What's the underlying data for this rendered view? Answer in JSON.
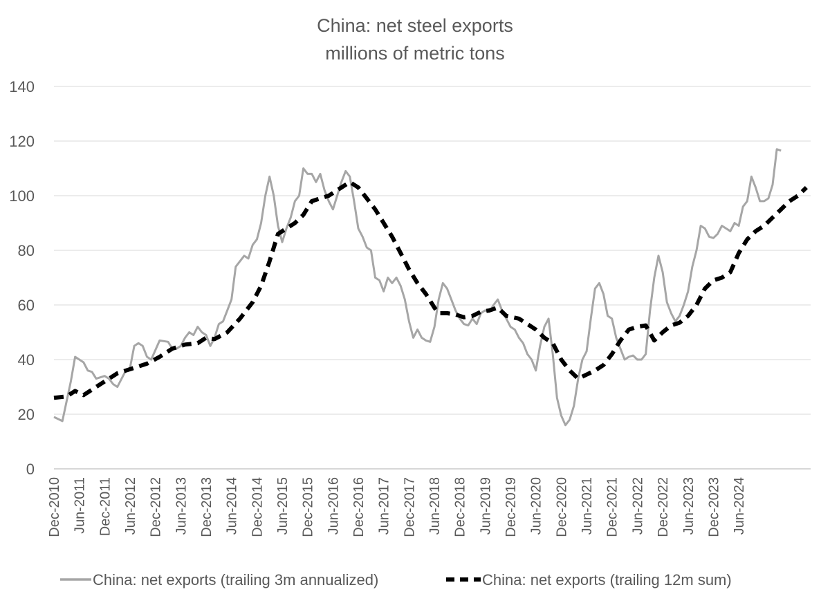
{
  "chart_data": {
    "type": "line",
    "title": "China: net steel exports",
    "subtitle": "millions of metric tons",
    "ylim": [
      0,
      140
    ],
    "yticks": [
      0,
      20,
      40,
      60,
      80,
      100,
      120,
      140
    ],
    "x_start": "Dec-2010",
    "x_end": "Nov-2024",
    "x_tick_labels": [
      "Dec-2010",
      "Jun-2011",
      "Dec-2011",
      "Jun-2012",
      "Dec-2012",
      "Jun-2013",
      "Dec-2013",
      "Jun-2014",
      "Dec-2014",
      "Jun-2015",
      "Dec-2015",
      "Jun-2016",
      "Dec-2016",
      "Jun-2017",
      "Dec-2017",
      "Jun-2018",
      "Dec-2018",
      "Jun-2019",
      "Dec-2019",
      "Jun-2020",
      "Dec-2020",
      "Jun-2021",
      "Dec-2021",
      "Jun-2022",
      "Dec-2022",
      "Jun-2023",
      "Dec-2023",
      "Jun-2024"
    ],
    "grid": true,
    "legend_position": "bottom",
    "series": [
      {
        "name": "China: net exports (trailing 3m annualized)",
        "color": "#a6a6a6",
        "style": "solid",
        "keypoints": [
          [
            0,
            19
          ],
          [
            2,
            17.5
          ],
          [
            4,
            32
          ],
          [
            5,
            41
          ],
          [
            7,
            39
          ],
          [
            8,
            36
          ],
          [
            9,
            35.5
          ],
          [
            10,
            33
          ],
          [
            12,
            34
          ],
          [
            13,
            33
          ],
          [
            14,
            31
          ],
          [
            15,
            30
          ],
          [
            17,
            36
          ],
          [
            18,
            37
          ],
          [
            19,
            45
          ],
          [
            20,
            46
          ],
          [
            21,
            45
          ],
          [
            22,
            41
          ],
          [
            23,
            40
          ],
          [
            25,
            47
          ],
          [
            27,
            46.5
          ],
          [
            28,
            44
          ],
          [
            29,
            44
          ],
          [
            30,
            45
          ],
          [
            31,
            48
          ],
          [
            32,
            50
          ],
          [
            33,
            49
          ],
          [
            34,
            52
          ],
          [
            35,
            50
          ],
          [
            36,
            49
          ],
          [
            37,
            45
          ],
          [
            38,
            48
          ],
          [
            39,
            53
          ],
          [
            40,
            54
          ],
          [
            41,
            58
          ],
          [
            42,
            62
          ],
          [
            43,
            74
          ],
          [
            44,
            76
          ],
          [
            45,
            78
          ],
          [
            46,
            77
          ],
          [
            47,
            82
          ],
          [
            48,
            84
          ],
          [
            49,
            90
          ],
          [
            50,
            100
          ],
          [
            51,
            107
          ],
          [
            52,
            100
          ],
          [
            53,
            89
          ],
          [
            54,
            83
          ],
          [
            55,
            88
          ],
          [
            56,
            92
          ],
          [
            57,
            98
          ],
          [
            58,
            100
          ],
          [
            59,
            110
          ],
          [
            60,
            108
          ],
          [
            61,
            108
          ],
          [
            62,
            105
          ],
          [
            63,
            108
          ],
          [
            64,
            102
          ],
          [
            65,
            98
          ],
          [
            66,
            95
          ],
          [
            67,
            100
          ],
          [
            68,
            105
          ],
          [
            69,
            109
          ],
          [
            70,
            107
          ],
          [
            71,
            98
          ],
          [
            72,
            88
          ],
          [
            73,
            85
          ],
          [
            74,
            81
          ],
          [
            75,
            80
          ],
          [
            76,
            70
          ],
          [
            77,
            69
          ],
          [
            78,
            65
          ],
          [
            79,
            70
          ],
          [
            80,
            68
          ],
          [
            81,
            70
          ],
          [
            82,
            67
          ],
          [
            83,
            62
          ],
          [
            84,
            54
          ],
          [
            85,
            48
          ],
          [
            86,
            51
          ],
          [
            87,
            48
          ],
          [
            88,
            47
          ],
          [
            89,
            46.5
          ],
          [
            90,
            52
          ],
          [
            91,
            62
          ],
          [
            92,
            68
          ],
          [
            93,
            66
          ],
          [
            94,
            62
          ],
          [
            95,
            58
          ],
          [
            96,
            55
          ],
          [
            97,
            53
          ],
          [
            98,
            52.5
          ],
          [
            99,
            55
          ],
          [
            100,
            53
          ],
          [
            101,
            57
          ],
          [
            102,
            58
          ],
          [
            103,
            57.5
          ],
          [
            104,
            60
          ],
          [
            105,
            62
          ],
          [
            106,
            58
          ],
          [
            107,
            55
          ],
          [
            108,
            52
          ],
          [
            109,
            51
          ],
          [
            110,
            48
          ],
          [
            111,
            46
          ],
          [
            112,
            42
          ],
          [
            113,
            40
          ],
          [
            114,
            36
          ],
          [
            115,
            45
          ],
          [
            116,
            52
          ],
          [
            117,
            55
          ],
          [
            118,
            42
          ],
          [
            119,
            26
          ],
          [
            120,
            19.5
          ],
          [
            121,
            16
          ],
          [
            122,
            18
          ],
          [
            123,
            23
          ],
          [
            124,
            33
          ],
          [
            125,
            40
          ],
          [
            126,
            43
          ],
          [
            127,
            55
          ],
          [
            128,
            66
          ],
          [
            129,
            68
          ],
          [
            130,
            64
          ],
          [
            131,
            56
          ],
          [
            132,
            55
          ],
          [
            133,
            48
          ],
          [
            134,
            44
          ],
          [
            135,
            40
          ],
          [
            136,
            41
          ],
          [
            137,
            41.5
          ],
          [
            138,
            40
          ],
          [
            139,
            40
          ],
          [
            140,
            42
          ],
          [
            141,
            58
          ],
          [
            142,
            70
          ],
          [
            143,
            78
          ],
          [
            144,
            72
          ],
          [
            145,
            61
          ],
          [
            146,
            57
          ],
          [
            147,
            54
          ],
          [
            148,
            56
          ],
          [
            149,
            60
          ],
          [
            150,
            65
          ],
          [
            151,
            74
          ],
          [
            152,
            80
          ],
          [
            153,
            89
          ],
          [
            154,
            88
          ],
          [
            155,
            85
          ],
          [
            156,
            84.5
          ],
          [
            157,
            86
          ],
          [
            158,
            89
          ],
          [
            159,
            88
          ],
          [
            160,
            87
          ],
          [
            161,
            90
          ],
          [
            162,
            89
          ],
          [
            163,
            96
          ],
          [
            164,
            98
          ],
          [
            165,
            107
          ],
          [
            166,
            103
          ],
          [
            167,
            98
          ],
          [
            168,
            98
          ],
          [
            169,
            99
          ],
          [
            170,
            104
          ],
          [
            171,
            117
          ],
          [
            172,
            116.5
          ]
        ]
      },
      {
        "name": "China: net exports (trailing 12m sum)",
        "color": "#000000",
        "style": "dashed",
        "keypoints": [
          [
            0,
            26
          ],
          [
            3,
            26.5
          ],
          [
            5,
            28.5
          ],
          [
            7,
            27
          ],
          [
            10,
            30
          ],
          [
            13,
            33
          ],
          [
            15,
            35
          ],
          [
            19,
            37
          ],
          [
            22,
            38.5
          ],
          [
            25,
            41
          ],
          [
            28,
            44
          ],
          [
            31,
            45.5
          ],
          [
            34,
            46
          ],
          [
            36,
            48
          ],
          [
            38,
            47.5
          ],
          [
            41,
            50
          ],
          [
            44,
            55
          ],
          [
            47,
            61
          ],
          [
            49,
            67
          ],
          [
            51,
            76
          ],
          [
            52,
            81
          ],
          [
            53,
            86
          ],
          [
            55,
            88
          ],
          [
            57,
            90
          ],
          [
            59,
            93
          ],
          [
            61,
            98
          ],
          [
            63,
            99
          ],
          [
            65,
            100
          ],
          [
            67,
            102
          ],
          [
            69,
            104
          ],
          [
            70,
            105
          ],
          [
            72,
            103
          ],
          [
            74,
            99
          ],
          [
            76,
            95
          ],
          [
            78,
            90
          ],
          [
            80,
            85
          ],
          [
            82,
            79
          ],
          [
            84,
            73
          ],
          [
            86,
            68
          ],
          [
            88,
            64
          ],
          [
            90,
            59
          ],
          [
            91,
            57
          ],
          [
            93,
            57
          ],
          [
            95,
            56.5
          ],
          [
            97,
            55.5
          ],
          [
            99,
            56
          ],
          [
            101,
            57.5
          ],
          [
            103,
            58
          ],
          [
            105,
            59
          ],
          [
            107,
            56
          ],
          [
            110,
            55
          ],
          [
            112,
            53
          ],
          [
            114,
            51
          ],
          [
            116,
            48
          ],
          [
            118,
            46
          ],
          [
            120,
            40
          ],
          [
            122,
            36
          ],
          [
            124,
            33
          ],
          [
            126,
            34.5
          ],
          [
            128,
            36
          ],
          [
            130,
            38
          ],
          [
            132,
            42
          ],
          [
            134,
            47
          ],
          [
            136,
            51
          ],
          [
            138,
            52
          ],
          [
            140,
            52.5
          ],
          [
            142,
            47
          ],
          [
            144,
            50
          ],
          [
            146,
            52.5
          ],
          [
            148,
            53.5
          ],
          [
            150,
            56
          ],
          [
            152,
            60
          ],
          [
            154,
            66
          ],
          [
            156,
            69
          ],
          [
            158,
            70
          ],
          [
            160,
            72
          ],
          [
            162,
            79
          ],
          [
            164,
            84
          ],
          [
            166,
            87
          ],
          [
            168,
            89
          ],
          [
            170,
            92
          ],
          [
            172,
            95
          ],
          [
            174,
            98
          ],
          [
            176,
            100
          ],
          [
            178,
            103
          ]
        ]
      }
    ]
  }
}
